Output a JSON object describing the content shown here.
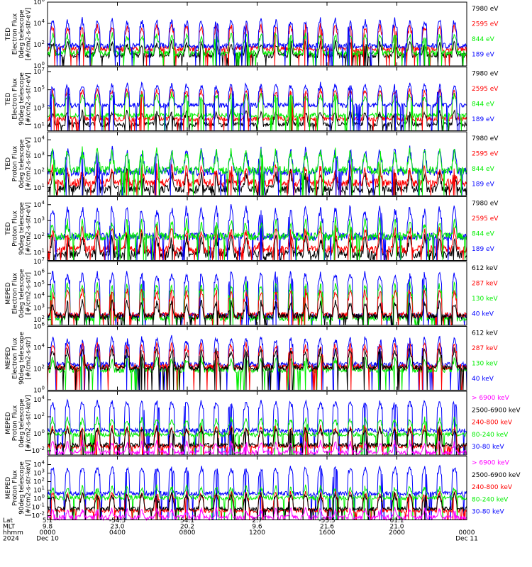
{
  "colors": {
    "black": "#000000",
    "red": "#ff0000",
    "green": "#00ee00",
    "blue": "#0000ff",
    "magenta": "#ff00ff"
  },
  "chart_data": {
    "type": "line",
    "x_axis": {
      "ticks": [
        "0000",
        "0400",
        "0800",
        "1200",
        "1600",
        "2000",
        "0000"
      ],
      "start_date": "Dec 10",
      "end_date": "Dec 11",
      "year": "2024"
    },
    "orbit_rows": [
      {
        "label": "Lat",
        "values": [
          "5.1",
          "-54.3",
          "54.1",
          "2.7",
          "-55.5",
          "61.1",
          ""
        ]
      },
      {
        "label": "MLT",
        "values": [
          "9.8",
          "23.0",
          "20.2",
          "9.6",
          "21.6",
          "21.0",
          ""
        ]
      },
      {
        "label": "hhmm",
        "values": [
          "0000",
          "0400",
          "0800",
          "1200",
          "1600",
          "2000",
          "0000"
        ]
      },
      {
        "label": "2024",
        "values": [
          "Dec 10",
          "",
          "",
          "",
          "",
          "",
          "Dec 11"
        ]
      }
    ],
    "panels": [
      {
        "ylabel": [
          "TED",
          "Electron Flux",
          "0deg telescope",
          "[#/cm2-s-str-eV]"
        ],
        "y_exponents": [
          "0",
          "2",
          "4",
          "6"
        ],
        "ylog": [
          0,
          6
        ],
        "series": [
          {
            "name": "7980 eV",
            "color": "#000000",
            "base": 1.0,
            "peak": 2.2
          },
          {
            "name": "2595 eV",
            "color": "#ff0000",
            "base": 1.6,
            "peak": 3.8
          },
          {
            "name": "844 eV",
            "color": "#00ee00",
            "base": 1.2,
            "peak": 3.0
          },
          {
            "name": "189 eV",
            "color": "#0000ff",
            "base": 1.9,
            "peak": 4.3
          }
        ]
      },
      {
        "ylabel": [
          "TED",
          "Electron Flux",
          "90deg telescope",
          "[#/cm2-s-str-eV]"
        ],
        "y_exponents": [
          "1",
          "3",
          "5",
          "7"
        ],
        "ylog": [
          0.5,
          7.5
        ],
        "series": [
          {
            "name": "7980 eV",
            "color": "#000000",
            "base": 1.2,
            "peak": 2.6
          },
          {
            "name": "2595 eV",
            "color": "#ff0000",
            "base": 1.8,
            "peak": 5.0
          },
          {
            "name": "844 eV",
            "color": "#00ee00",
            "base": 2.2,
            "peak": 4.5
          },
          {
            "name": "189 eV",
            "color": "#0000ff",
            "base": 3.3,
            "peak": 5.6
          }
        ]
      },
      {
        "ylabel": [
          "TED",
          "Proton Flux",
          "0deg telescope",
          "[#/cm2-s-str-eV]"
        ],
        "y_exponents": [
          "1",
          "2",
          "3",
          "4"
        ],
        "ylog": [
          0.5,
          4.5
        ],
        "series": [
          {
            "name": "7980 eV",
            "color": "#000000",
            "base": 0.9,
            "peak": 2.0
          },
          {
            "name": "2595 eV",
            "color": "#ff0000",
            "base": 1.3,
            "peak": 2.3
          },
          {
            "name": "844 eV",
            "color": "#0000ff",
            "base": 2.0,
            "peak": 3.4
          },
          {
            "name": "189 eV",
            "color": "#00ee00",
            "base": 2.1,
            "peak": 3.3
          }
        ],
        "legend_colors": [
          "#000000",
          "#ff0000",
          "#00ee00",
          "#0000ff"
        ]
      },
      {
        "ylabel": [
          "TED",
          "Proton Flux",
          "90deg telescope",
          "[#/cm2-s-str-eV]"
        ],
        "y_exponents": [
          "1",
          "2",
          "3",
          "4"
        ],
        "ylog": [
          0.5,
          4.5
        ],
        "series": [
          {
            "name": "7980 eV",
            "color": "#000000",
            "base": 0.9,
            "peak": 2.0
          },
          {
            "name": "2595 eV",
            "color": "#ff0000",
            "base": 1.2,
            "peak": 2.5
          },
          {
            "name": "844 eV",
            "color": "#0000ff",
            "base": 2.0,
            "peak": 3.8
          },
          {
            "name": "189 eV",
            "color": "#00ee00",
            "base": 2.0,
            "peak": 3.0
          }
        ],
        "legend_colors": [
          "#000000",
          "#ff0000",
          "#00ee00",
          "#0000ff"
        ]
      },
      {
        "ylabel": [
          "MEPED",
          "Electron Flux",
          "0deg telescope",
          "[#/cm2-s-str]"
        ],
        "y_exponents": [
          "2",
          "3",
          "4",
          "5",
          "6",
          "7"
        ],
        "ylog": [
          1.5,
          7
        ],
        "series": [
          {
            "name": "40 keV",
            "color": "#0000ff",
            "base": 2.3,
            "peak": 6.0
          },
          {
            "name": "130 keV",
            "color": "#00ee00",
            "base": 2.1,
            "peak": 5.0
          },
          {
            "name": "287 keV",
            "color": "#ff0000",
            "base": 2.4,
            "peak": 4.5
          },
          {
            "name": "612 keV",
            "color": "#000000",
            "base": 2.3,
            "peak": 3.5
          }
        ],
        "legend_colors": [
          "#000000",
          "#ff0000",
          "#00ee00",
          "#0000ff"
        ]
      },
      {
        "ylabel": [
          "MEPED",
          "Electron Flux",
          "90deg telescope",
          "[#/cm2-s-str]"
        ],
        "y_exponents": [
          "0",
          "2",
          "4",
          "6"
        ],
        "ylog": [
          0,
          6
        ],
        "series": [
          {
            "name": "40 keV",
            "color": "#0000ff",
            "base": 2.4,
            "peak": 4.9
          },
          {
            "name": "130 keV",
            "color": "#00ee00",
            "base": 1.9,
            "peak": 3.0
          },
          {
            "name": "287 keV",
            "color": "#ff0000",
            "base": 2.2,
            "peak": 4.3
          },
          {
            "name": "612 keV",
            "color": "#000000",
            "base": 2.1,
            "peak": 3.8
          }
        ],
        "legend_colors": [
          "#000000",
          "#ff0000",
          "#00ee00",
          "#0000ff"
        ]
      },
      {
        "ylabel": [
          "MEPED",
          "Proton Flux",
          "0deg telescope",
          "[#/cm2-s-str-keV]"
        ],
        "y_exponents": [
          "-2",
          "0",
          "2",
          "4"
        ],
        "ylog": [
          -2.5,
          5
        ],
        "series": [
          {
            "name": "30-80 keV",
            "color": "#0000ff",
            "base": 0.4,
            "peak": 3.8
          },
          {
            "name": "80-240 keV",
            "color": "#00ee00",
            "base": -0.1,
            "peak": 1.8
          },
          {
            "name": "240-800 keV",
            "color": "#ff0000",
            "base": -1.5,
            "peak": 0.8
          },
          {
            "name": "2500-6900 keV",
            "color": "#000000",
            "base": -1.3,
            "peak": 0.6
          },
          {
            "name": "> 6900 keV",
            "color": "#ff00ff",
            "base": -2.2,
            "peak": -1.0
          }
        ],
        "legend_colors": [
          "#ff00ff",
          "#000000",
          "#ff0000",
          "#00ee00",
          "#0000ff"
        ]
      },
      {
        "ylabel": [
          "MEPED",
          "Proton Flux",
          "90deg telescope",
          "[#/cm2-s-str-keV]"
        ],
        "y_exponents": [
          "-2",
          "-1",
          "0",
          "1",
          "2",
          "3",
          "4"
        ],
        "ylog": [
          -2.5,
          5
        ],
        "series": [
          {
            "name": "30-80 keV",
            "color": "#0000ff",
            "base": 0.6,
            "peak": 3.7
          },
          {
            "name": "80-240 keV",
            "color": "#00ee00",
            "base": 0.1,
            "peak": 1.4
          },
          {
            "name": "240-800 keV",
            "color": "#ff0000",
            "base": -1.4,
            "peak": 0.7
          },
          {
            "name": "2500-6900 keV",
            "color": "#000000",
            "base": -1.2,
            "peak": 0.5
          },
          {
            "name": "> 6900 keV",
            "color": "#ff00ff",
            "base": -2.2,
            "peak": -1.2
          }
        ],
        "legend_colors": [
          "#ff00ff",
          "#000000",
          "#ff0000",
          "#00ee00",
          "#0000ff"
        ]
      }
    ]
  }
}
